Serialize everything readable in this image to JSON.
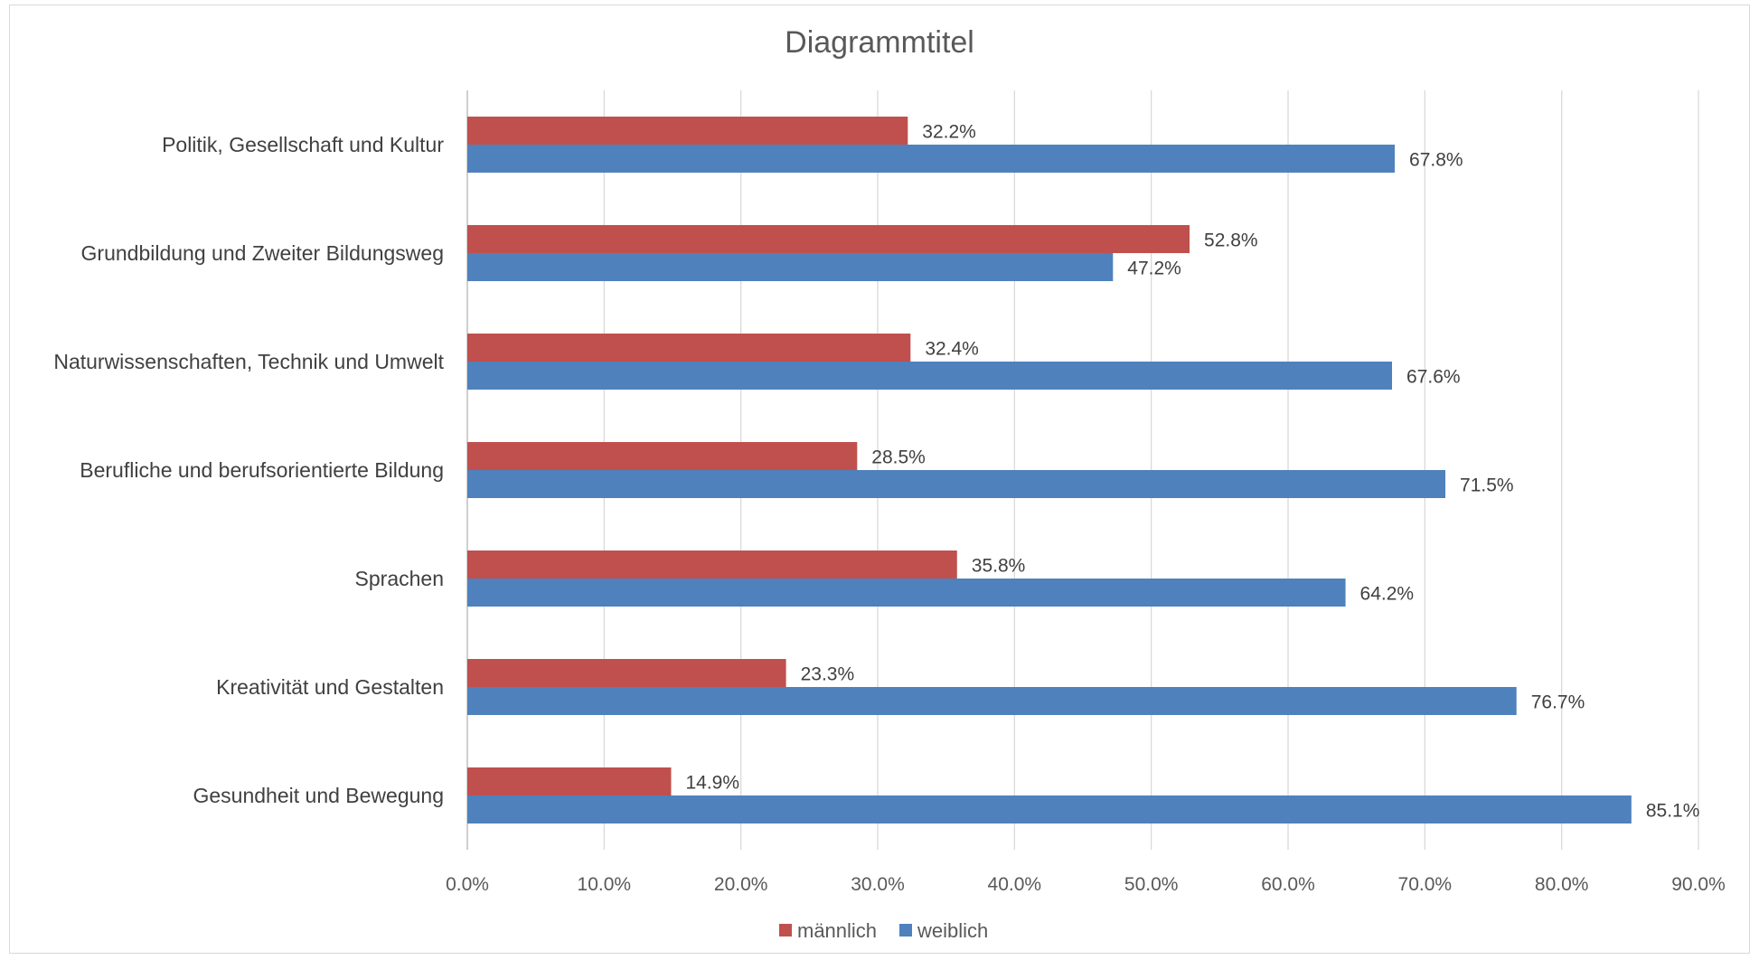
{
  "chart_data": {
    "type": "bar",
    "orientation": "horizontal",
    "title": "Diagrammtitel",
    "categories": [
      "Politik, Gesellschaft und Kultur",
      "Grundbildung und Zweiter Bildungsweg",
      "Naturwissenschaften, Technik und Umwelt",
      "Berufliche und berufsorientierte Bildung",
      "Sprachen",
      "Kreativität und Gestalten",
      "Gesundheit und Bewegung"
    ],
    "series": [
      {
        "name": "männlich",
        "color": "#c0504d",
        "values": [
          32.2,
          52.8,
          32.4,
          28.5,
          35.8,
          23.3,
          14.9
        ],
        "labels": [
          "32.2%",
          "52.8%",
          "32.4%",
          "28.5%",
          "35.8%",
          "23.3%",
          "14.9%"
        ]
      },
      {
        "name": "weiblich",
        "color": "#4f81bd",
        "values": [
          67.8,
          47.2,
          67.6,
          71.5,
          64.2,
          76.7,
          85.1
        ],
        "labels": [
          "67.8%",
          "47.2%",
          "67.6%",
          "71.5%",
          "64.2%",
          "76.7%",
          "85.1%"
        ]
      }
    ],
    "xlim": [
      0,
      90
    ],
    "xticks": [
      "0.0%",
      "10.0%",
      "20.0%",
      "30.0%",
      "40.0%",
      "50.0%",
      "60.0%",
      "70.0%",
      "80.0%",
      "90.0%"
    ],
    "grid": true,
    "legend": "bottom"
  }
}
